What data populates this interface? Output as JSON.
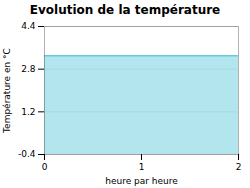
{
  "chart_data": {
    "type": "area",
    "title": "Evolution de la température",
    "xlabel": "heure par heure",
    "ylabel": "Température en °C",
    "x": [
      0,
      2
    ],
    "values": [
      3.3,
      3.3
    ],
    "color": "#66ccdd",
    "xlim": [
      0,
      2
    ],
    "ylim": [
      -0.4,
      4.4
    ],
    "xticks": [
      0,
      1,
      2
    ],
    "yticks": [
      -0.4,
      1.2,
      2.8,
      4.4
    ],
    "grid": "y"
  }
}
